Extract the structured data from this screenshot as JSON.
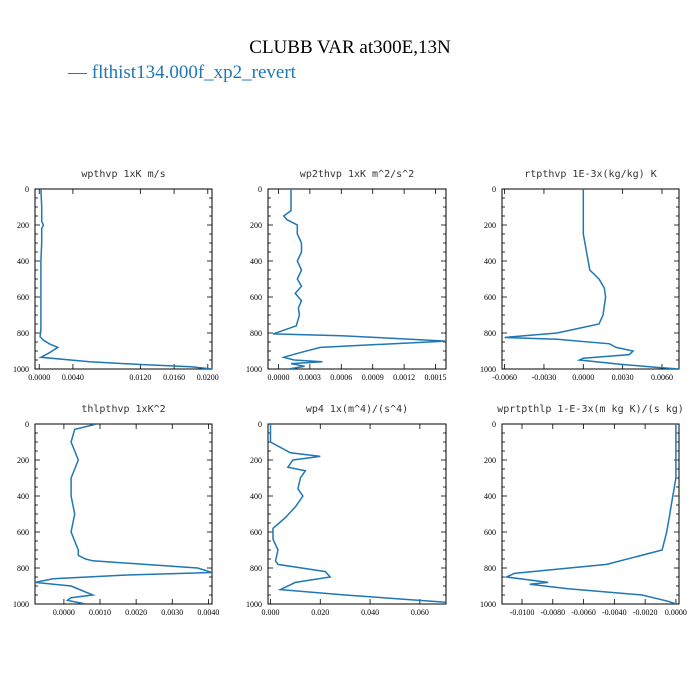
{
  "title": "CLUBB VAR at300E,13N",
  "legend": {
    "label": "flthist134.000f_xp2_revert",
    "color": "#1f77b4"
  },
  "chart_data": [
    {
      "type": "line",
      "title": "wpthvp  1xK m/s",
      "xlim": [
        -0.0005,
        0.0205
      ],
      "ylim": [
        1000,
        0
      ],
      "xticks": [
        0.0,
        0.004,
        0.012,
        0.016,
        0.02
      ],
      "xticklabels": [
        "0.0000",
        "0.0040",
        "0.0120",
        "0.0160",
        "0.0200"
      ],
      "yticks": [
        0,
        200,
        400,
        600,
        800,
        1000
      ],
      "series": [
        {
          "x": [
            0.0002,
            0.0003,
            0.0003,
            0.0005,
            0.0003,
            0.0003,
            0.0002,
            0.0002,
            0.0002,
            0.0002,
            0.0002,
            0.0001,
            0.0005,
            0.0012,
            0.0022,
            0.0012,
            0.0002,
            0.006,
            0.012,
            0.018,
            0.0205
          ],
          "y": [
            0,
            100,
            180,
            200,
            220,
            300,
            400,
            500,
            600,
            700,
            780,
            820,
            840,
            860,
            880,
            910,
            935,
            960,
            975,
            988,
            1000
          ]
        }
      ]
    },
    {
      "type": "line",
      "title": "wp2thvp  1xK m^2/s^2",
      "xlim": [
        -0.0001,
        0.0016
      ],
      "ylim": [
        1000,
        0
      ],
      "xticks": [
        0.0,
        0.0003,
        0.0006,
        0.0009,
        0.0012,
        0.0015
      ],
      "xticklabels": [
        "0.0000",
        "0.0003",
        "0.0006",
        "0.0009",
        "0.0012",
        "0.0015"
      ],
      "yticks": [
        0,
        200,
        400,
        600,
        800,
        1000
      ],
      "series": [
        {
          "x": [
            0.00012,
            0.00012,
            0.00012,
            5e-05,
            8e-05,
            0.00018,
            0.00018,
            0.00022,
            0.00022,
            0.00018,
            0.00022,
            0.00018,
            0.00022,
            0.00016,
            0.00022,
            0.00019,
            0.0002,
            0.00017,
            -5e-05,
            0.0006,
            0.0011,
            0.0016,
            0.0004,
            0.0002,
            5e-05,
            0.00015,
            0.00042,
            0.00012,
            0.00025,
            0.0001
          ],
          "y": [
            0,
            100,
            120,
            150,
            170,
            200,
            250,
            300,
            350,
            400,
            450,
            500,
            540,
            580,
            620,
            660,
            700,
            760,
            805,
            815,
            830,
            845,
            880,
            910,
            935,
            950,
            960,
            970,
            985,
            1000
          ]
        }
      ]
    },
    {
      "type": "line",
      "title": "rtpthvp  1E-3x(kg/kg) K",
      "xlim": [
        -0.0062,
        0.0073
      ],
      "ylim": [
        1000,
        0
      ],
      "xticks": [
        -0.006,
        -0.003,
        0.0,
        0.003,
        0.006
      ],
      "xticklabels": [
        "-0.0060",
        "-0.0030",
        "0.0000",
        "0.0030",
        "0.0060"
      ],
      "yticks": [
        0,
        200,
        400,
        600,
        800,
        1000
      ],
      "series": [
        {
          "x": [
            0.0,
            0.0,
            0.0,
            0.0005,
            0.0012,
            0.0016,
            0.0017,
            0.0015,
            0.0012,
            -0.002,
            -0.0045,
            -0.006,
            -0.002,
            0.002,
            0.0025,
            0.0038,
            0.0035,
            0.0,
            -0.0003,
            0.003,
            0.0055,
            0.0073
          ],
          "y": [
            0,
            100,
            250,
            450,
            500,
            550,
            600,
            700,
            750,
            800,
            815,
            825,
            835,
            860,
            880,
            900,
            920,
            940,
            950,
            975,
            990,
            1000
          ]
        }
      ]
    },
    {
      "type": "line",
      "title": "thlpthvp  1xK^2",
      "xlim": [
        -0.0008,
        0.0041
      ],
      "ylim": [
        1000,
        0
      ],
      "xticks": [
        0.0,
        0.001,
        0.002,
        0.003,
        0.004
      ],
      "xticklabels": [
        "0.0000",
        "0.0010",
        "0.0020",
        "0.0030",
        "0.0040"
      ],
      "yticks": [
        0,
        200,
        400,
        600,
        800,
        1000
      ],
      "series": [
        {
          "x": [
            0.0009,
            0.0003,
            0.0002,
            0.0003,
            0.0004,
            0.0002,
            0.0002,
            0.0003,
            0.0002,
            0.0003,
            0.0004,
            0.0004,
            0.0006,
            0.0008,
            0.0037,
            0.0041,
            0.0016,
            -0.0003,
            -0.0008,
            0.0002,
            0.0008,
            0.0002,
            0.0001,
            0.0006
          ],
          "y": [
            0,
            30,
            100,
            150,
            200,
            300,
            400,
            500,
            600,
            650,
            700,
            730,
            750,
            760,
            800,
            825,
            840,
            860,
            880,
            900,
            950,
            965,
            980,
            1000
          ]
        }
      ]
    },
    {
      "type": "line",
      "title": "wp4  1x(m^4)/(s^4)",
      "xlim": [
        -0.001,
        0.0705
      ],
      "ylim": [
        1000,
        0
      ],
      "xticks": [
        0.0,
        0.02,
        0.04,
        0.06
      ],
      "xticklabels": [
        "0.000",
        "0.020",
        "0.040",
        "0.060"
      ],
      "yticks": [
        0,
        200,
        400,
        600,
        800,
        1000
      ],
      "series": [
        {
          "x": [
            0.0,
            0.0,
            0.008,
            0.02,
            0.009,
            0.007,
            0.014,
            0.012,
            0.011,
            0.013,
            0.01,
            0.006,
            0.001,
            0.001,
            0.003,
            0.002,
            0.003,
            0.022,
            0.024,
            0.01,
            0.004,
            0.03,
            0.05,
            0.0705
          ],
          "y": [
            0,
            100,
            160,
            180,
            200,
            240,
            260,
            300,
            360,
            400,
            460,
            520,
            580,
            640,
            700,
            760,
            780,
            820,
            850,
            880,
            920,
            950,
            970,
            990
          ]
        }
      ]
    },
    {
      "type": "line",
      "title": "wprtpthlp  1-E-3x(m kg K)/(s kg)",
      "xlim": [
        -0.0113,
        0.0002
      ],
      "ylim": [
        1000,
        0
      ],
      "xticks": [
        -0.01,
        -0.008,
        -0.006,
        -0.004,
        -0.002,
        0.0
      ],
      "xticklabels": [
        "-0.0100",
        "-0.0080",
        "-0.0060",
        "-0.0040",
        "-0.0020",
        "0.0000"
      ],
      "yticks": [
        0,
        200,
        400,
        600,
        800,
        1000
      ],
      "series": [
        {
          "x": [
            0.0,
            0.0,
            -0.0002,
            -0.0004,
            -0.0006,
            -0.0009,
            -0.0045,
            -0.0105,
            -0.011,
            -0.0083,
            -0.0095,
            -0.007,
            -0.0022,
            -0.0005,
            0.0
          ],
          "y": [
            0,
            300,
            400,
            500,
            600,
            700,
            780,
            830,
            850,
            880,
            890,
            915,
            950,
            985,
            1000
          ]
        }
      ]
    }
  ]
}
